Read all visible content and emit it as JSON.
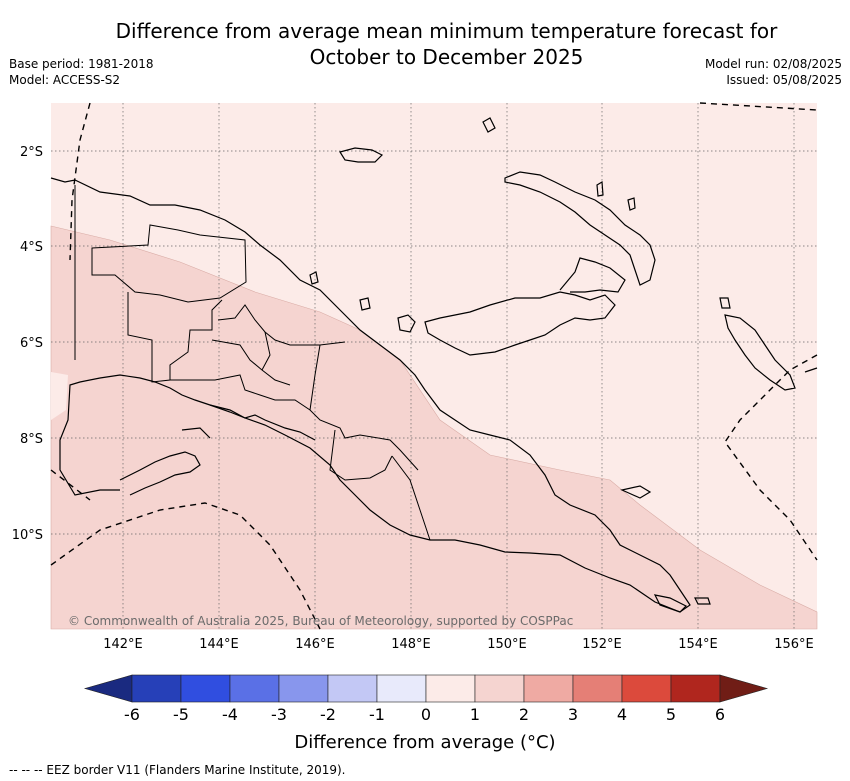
{
  "header": {
    "title_line1": "Difference from average mean minimum temperature forecast for",
    "title_line2": "October to December 2025",
    "base_period": "Base period: 1981-2018",
    "model": "Model: ACCESS-S2",
    "model_run": "Model run: 02/08/2025",
    "issued": "Issued: 05/08/2025"
  },
  "map": {
    "lat_labels": [
      "2°S",
      "4°S",
      "6°S",
      "8°S",
      "10°S"
    ],
    "lon_labels": [
      "142°E",
      "144°E",
      "146°E",
      "148°E",
      "150°E",
      "152°E",
      "154°E",
      "156°E"
    ],
    "copyright": "© Commonwealth of Australia 2025, Bureau of Meteorology, supported by COSPPac",
    "colors": {
      "zero_to_one": "#fcebe8",
      "one_to_two": "#f5d4d0"
    }
  },
  "colorbar": {
    "ticks": [
      "-6",
      "-5",
      "-4",
      "-3",
      "-2",
      "-1",
      "0",
      "1",
      "2",
      "3",
      "4",
      "5",
      "6"
    ],
    "colors": [
      "#1a2a80",
      "#2640b8",
      "#304ee0",
      "#5a70e6",
      "#8896ed",
      "#c3c8f5",
      "#e8eafb",
      "#fcebe8",
      "#f5d4d0",
      "#efaaa3",
      "#e57f76",
      "#dc4a3c",
      "#b0261e",
      "#701d16"
    ],
    "label": "Difference from average (°C)"
  },
  "footnote": "--  --  -- EEZ border V11 (Flanders Marine Institute, 2019)."
}
